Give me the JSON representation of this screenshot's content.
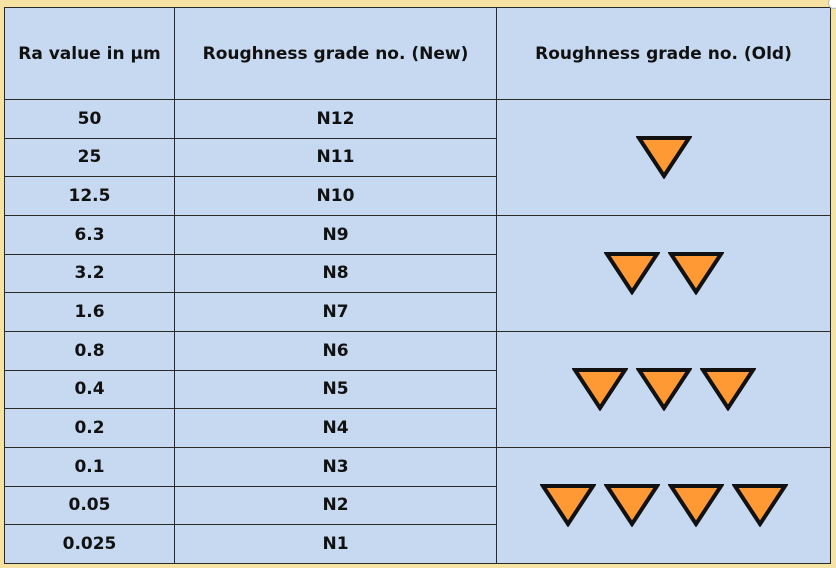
{
  "table": {
    "headers": [
      "Ra value in µm",
      "Roughness grade no. (New)",
      "Roughness grade no. (Old)"
    ],
    "rows": [
      {
        "ra": "50",
        "grade": "N12"
      },
      {
        "ra": "25",
        "grade": "N11"
      },
      {
        "ra": "12.5",
        "grade": "N10"
      },
      {
        "ra": "6.3",
        "grade": "N9"
      },
      {
        "ra": "3.2",
        "grade": "N8"
      },
      {
        "ra": "1.6",
        "grade": "N7"
      },
      {
        "ra": "0.8",
        "grade": "N6"
      },
      {
        "ra": "0.4",
        "grade": "N5"
      },
      {
        "ra": "0.2",
        "grade": "N4"
      },
      {
        "ra": "0.1",
        "grade": "N3"
      },
      {
        "ra": "0.05",
        "grade": "N2"
      },
      {
        "ra": "0.025",
        "grade": "N1"
      }
    ],
    "old_symbol_groups": [
      {
        "triangle_count": 1,
        "rows": 3
      },
      {
        "triangle_count": 2,
        "rows": 3
      },
      {
        "triangle_count": 3,
        "rows": 3
      },
      {
        "triangle_count": 4,
        "rows": 3
      }
    ]
  },
  "colors": {
    "cell_background": "#c6d9f1",
    "border": "#2a2a2a",
    "triangle_fill": "#ff9933",
    "triangle_stroke": "#111111",
    "page_background": "#f6e3a4"
  },
  "icons": {
    "old_grade_symbol": "machining-triangle-icon"
  }
}
